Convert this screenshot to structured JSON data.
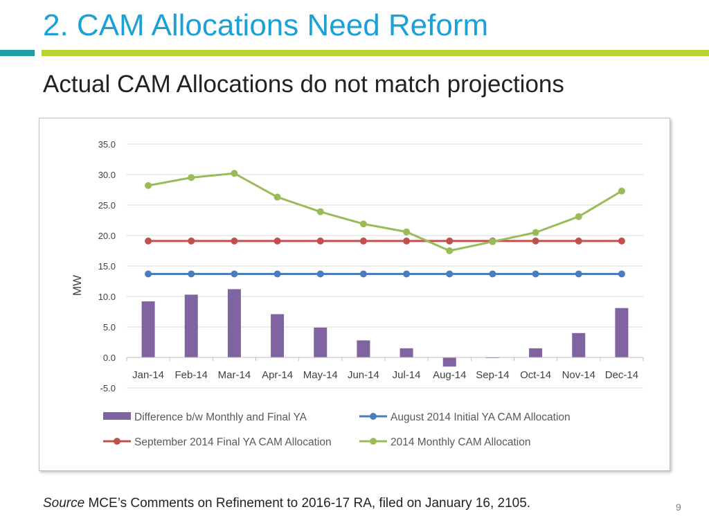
{
  "slide": {
    "title": "2. CAM Allocations Need Reform",
    "subtitle": "Actual CAM Allocations do not match projections",
    "source_label": "Source",
    "source_text": " MCE’s Comments on Refinement to 2016-17 RA, filed on January 16, 2105.",
    "page_number": "9",
    "colors": {
      "title": "#1ba1d6",
      "accent_teal": "#1b9ea6",
      "accent_green": "#b5d334"
    }
  },
  "chart_data": {
    "type": "bar",
    "title": "",
    "xlabel": "",
    "ylabel": "MW",
    "ylim": [
      -5,
      35
    ],
    "yticks": [
      35,
      30,
      25,
      20,
      15,
      10,
      5,
      0,
      -5
    ],
    "ytick_labels": [
      "35.0",
      "30.0",
      "25.0",
      "20.0",
      "15.0",
      "10.0",
      "5.0",
      "0.0",
      "-5.0"
    ],
    "grid": true,
    "legend_position": "bottom",
    "categories": [
      "Jan-14",
      "Feb-14",
      "Mar-14",
      "Apr-14",
      "May-14",
      "Jun-14",
      "Jul-14",
      "Aug-14",
      "Sep-14",
      "Oct-14",
      "Nov-14",
      "Dec-14"
    ],
    "series": [
      {
        "name": "Difference b/w Monthly and Final YA",
        "type": "bar",
        "color": "#8064a2",
        "values": [
          9.2,
          10.3,
          11.2,
          7.1,
          4.9,
          2.8,
          1.5,
          -1.5,
          -0.1,
          1.5,
          4.0,
          8.1
        ]
      },
      {
        "name": "August 2014 Initial YA CAM Allocation",
        "type": "line",
        "color": "#4a7dc0",
        "values": [
          13.7,
          13.7,
          13.7,
          13.7,
          13.7,
          13.7,
          13.7,
          13.7,
          13.7,
          13.7,
          13.7,
          13.7
        ]
      },
      {
        "name": "September 2014 Final YA CAM Allocation",
        "type": "line",
        "color": "#c0504d",
        "values": [
          19.1,
          19.1,
          19.1,
          19.1,
          19.1,
          19.1,
          19.1,
          19.1,
          19.1,
          19.1,
          19.1,
          19.1
        ]
      },
      {
        "name": "2014 Monthly CAM Allocation",
        "type": "line",
        "color": "#9bbb59",
        "values": [
          28.2,
          29.5,
          30.2,
          26.3,
          23.9,
          21.9,
          20.6,
          17.5,
          19.0,
          20.5,
          23.1,
          27.3
        ]
      }
    ]
  }
}
